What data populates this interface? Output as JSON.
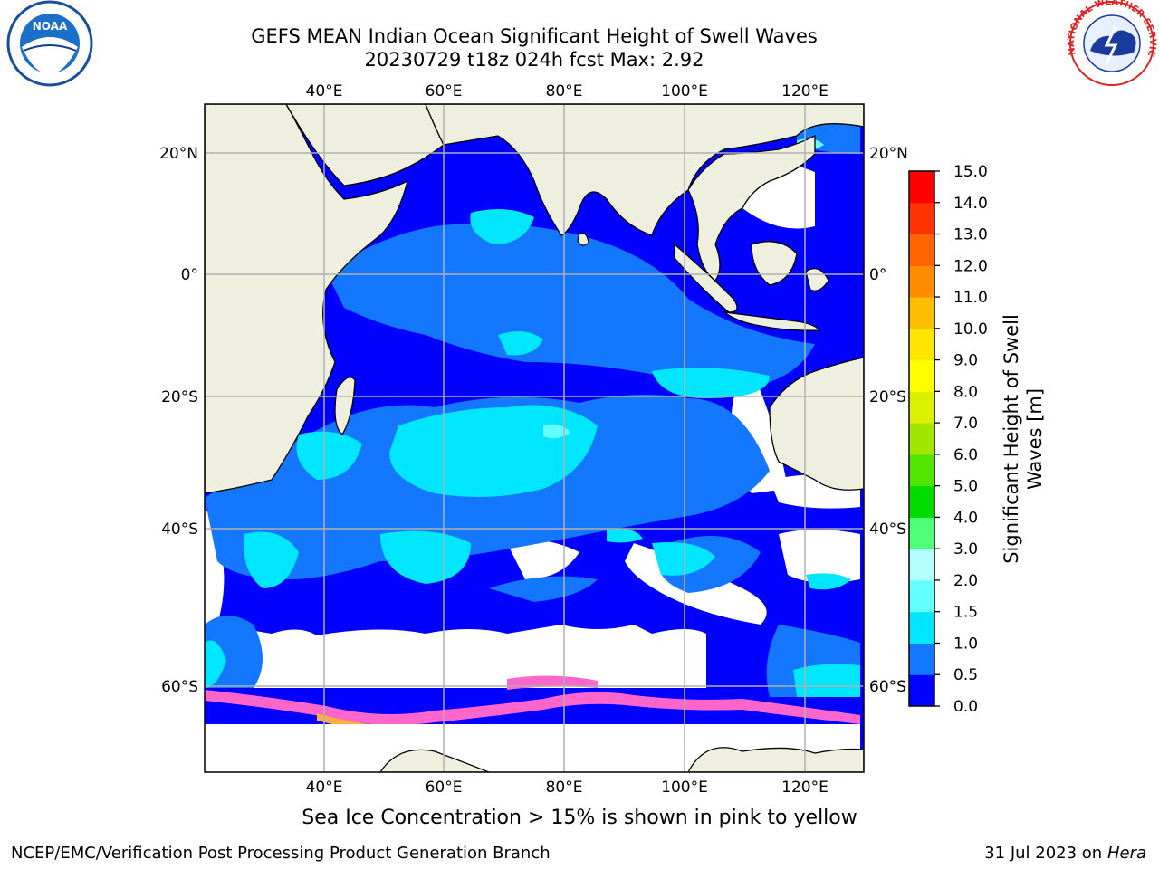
{
  "title": {
    "line1": "GEFS MEAN Indian Ocean Significant Height of Swell Waves",
    "line2": "20230729 t18z 024h fcst   Max: 2.92"
  },
  "map": {
    "lon_ticks": [
      "40°E",
      "60°E",
      "80°E",
      "100°E",
      "120°E"
    ],
    "lat_ticks": [
      "20°N",
      "0°",
      "20°S",
      "40°S",
      "60°S"
    ],
    "lon_range": [
      20,
      130
    ],
    "lat_range": [
      -72,
      28
    ],
    "land_color": "#efefe0",
    "grid_color": "#b0b0b0"
  },
  "colorbar": {
    "label": "Significant Height of Swell Waves [m]",
    "label_line1": "Significant Height of Swell",
    "label_line2": "Waves [m]",
    "ticks": [
      "0.0",
      "0.5",
      "1.0",
      "1.5",
      "2.0",
      "3.0",
      "4.0",
      "5.0",
      "6.0",
      "7.0",
      "8.0",
      "9.0",
      "10.0",
      "11.0",
      "12.0",
      "13.0",
      "14.0",
      "15.0"
    ],
    "colors": [
      "#0000ff",
      "#1478ff",
      "#00e6ff",
      "#64ffff",
      "#b4ffff",
      "#50ff78",
      "#00dc00",
      "#50e600",
      "#a0e600",
      "#dcf000",
      "#ffff00",
      "#ffe600",
      "#ffbe00",
      "#ff8c00",
      "#ff6400",
      "#ff3200",
      "#ff0000"
    ]
  },
  "logos": {
    "noaa": "NOAA",
    "nws": "NATIONAL WEATHER SERVICE"
  },
  "ice_note": "Sea Ice Concentration > 15% is shown in pink to yellow",
  "footer": {
    "left": "NCEP/EMC/Verification Post Processing Product Generation Branch",
    "right_date": "31 Jul 2023 on ",
    "right_host": "Hera"
  }
}
